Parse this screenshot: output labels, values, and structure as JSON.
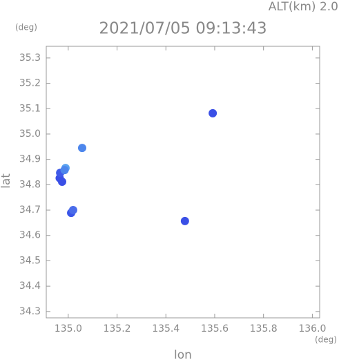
{
  "chart_data": {
    "type": "scatter",
    "title": "2021/07/05 09:13:43",
    "subtitle": "ALT(km) 2.0",
    "x_label": "lon",
    "y_label": "lat",
    "x_unit": "(deg)",
    "y_unit": "(deg)",
    "x": [
      134.965,
      134.967,
      134.975,
      134.989,
      134.985,
      135.057,
      135.012,
      135.02,
      135.592,
      135.478
    ],
    "values": [
      34.826,
      34.847,
      34.812,
      34.866,
      34.858,
      34.945,
      34.689,
      34.7,
      35.082,
      34.657
    ],
    "colors": [
      "#3a4fe6",
      "#3f5ae8",
      "#3a4fe6",
      "#5aa2f0",
      "#4d86ec",
      "#4d86ec",
      "#3a55e8",
      "#4a6cea",
      "#3a4fe6",
      "#3a4fe6"
    ],
    "xlim": [
      134.91,
      136.03
    ],
    "ylim": [
      34.275,
      35.346
    ],
    "xticks": [
      {
        "value": 135,
        "label": "135.0"
      },
      135.2,
      135.4,
      135.6,
      135.8,
      {
        "value": 136,
        "label": "136.0"
      }
    ],
    "yticks": [
      34.3,
      34.4,
      34.5,
      34.6,
      34.7,
      34.8,
      34.9,
      {
        "value": 35,
        "label": "35.0"
      },
      35.1,
      35.2,
      35.3
    ]
  }
}
